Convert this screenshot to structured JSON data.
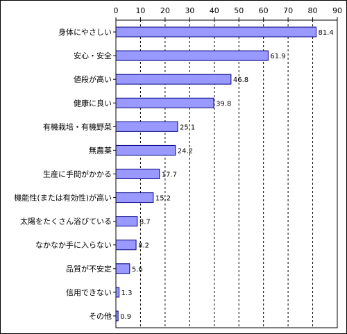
{
  "chart_data": {
    "type": "bar",
    "orientation": "horizontal",
    "categories": [
      "身体にやさしい",
      "安心・安全",
      "値段が高い",
      "健康に良い",
      "有機栽培・有機野菜",
      "無農薬",
      "生産に手間がかかる",
      "機能性(または有効性)が高い",
      "太陽をたくさん浴びている",
      "なかなか手に入らない",
      "品質が不安定",
      "信用できない",
      "その他"
    ],
    "values": [
      81.4,
      61.9,
      46.8,
      39.8,
      25.1,
      24.2,
      17.7,
      15.2,
      8.7,
      8.2,
      5.6,
      1.3,
      0.9
    ],
    "value_labels": [
      "81.4",
      "61.9",
      "46.8",
      "39.8",
      "25.1",
      "24.2",
      "17.7",
      "15.2",
      "8.7",
      "8.2",
      "5.6",
      "1.3",
      "0.9"
    ],
    "xticks": [
      "0",
      "10",
      "20",
      "30",
      "40",
      "50",
      "60",
      "70",
      "80",
      "90"
    ],
    "xlim": [
      0,
      90
    ],
    "x_axis_position": "top",
    "grid": "vertical dashed",
    "legend": "none",
    "bar_color": "#9999ff",
    "bar_edge_color": "#000080",
    "title": "",
    "xlabel": "",
    "ylabel": ""
  }
}
